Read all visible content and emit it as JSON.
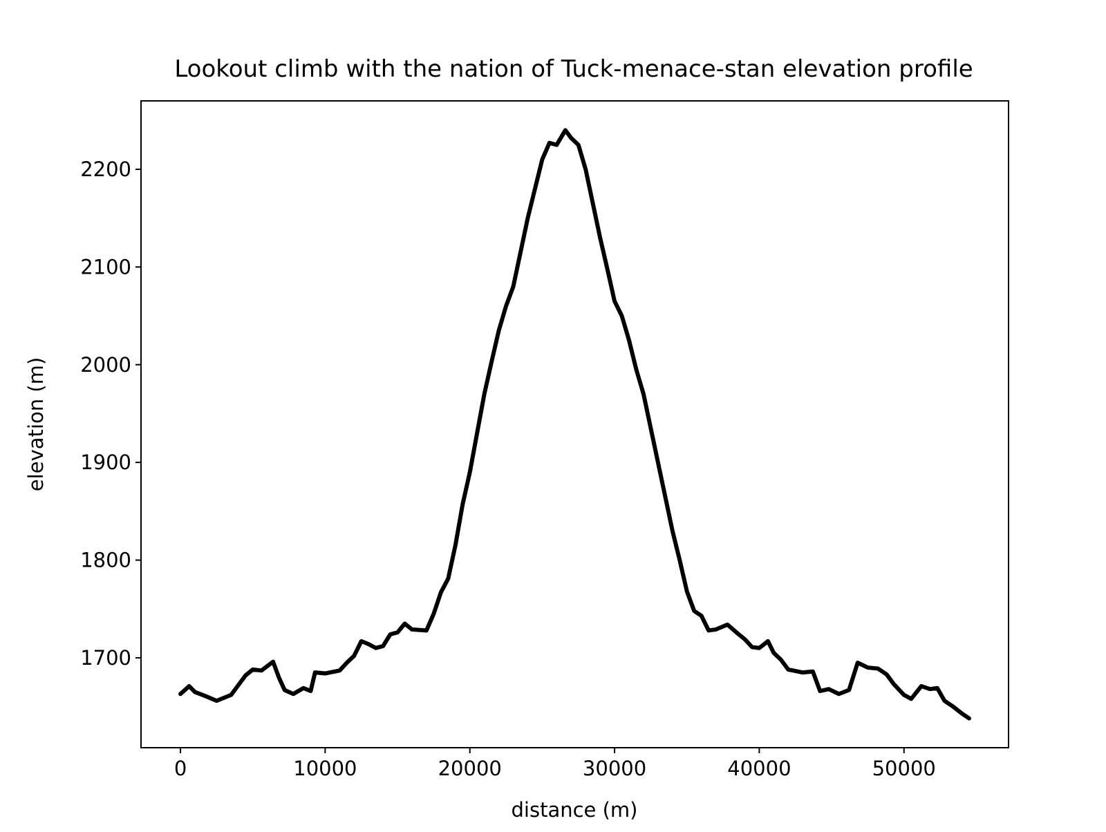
{
  "chart_data": {
    "type": "line",
    "title": "Lookout climb with the nation of Tuck-menace-stan elevation profile",
    "x_label": "distance (m)",
    "y_label": "elevation (m)",
    "x": [
      0,
      600,
      1000,
      1700,
      2500,
      3500,
      4000,
      4500,
      5000,
      5600,
      6400,
      6800,
      7200,
      7800,
      8500,
      9000,
      9300,
      10000,
      11000,
      11500,
      12000,
      12500,
      13000,
      13500,
      14000,
      14500,
      15000,
      15500,
      16000,
      17000,
      17500,
      18000,
      18500,
      19000,
      19500,
      20000,
      20500,
      21000,
      21500,
      22000,
      22500,
      23000,
      23500,
      24000,
      24500,
      25000,
      25500,
      26000,
      26600,
      27000,
      27500,
      28000,
      28500,
      29000,
      29500,
      30000,
      30500,
      31000,
      31500,
      32000,
      32500,
      33000,
      33500,
      34000,
      34500,
      35000,
      35500,
      36000,
      36500,
      37000,
      37800,
      38500,
      39000,
      39500,
      40000,
      40600,
      41000,
      41500,
      42000,
      43000,
      43700,
      44200,
      44800,
      45500,
      46200,
      46800,
      47500,
      48200,
      48800,
      49300,
      50000,
      50500,
      51200,
      51800,
      52300,
      52800,
      53400,
      54000,
      54500
    ],
    "series": [
      {
        "name": "elevation",
        "color": "#000000",
        "values": [
          1663,
          1671,
          1665,
          1661,
          1656,
          1662,
          1672,
          1682,
          1688,
          1687,
          1696,
          1680,
          1667,
          1663,
          1669,
          1666,
          1685,
          1684,
          1687,
          1695,
          1702,
          1717,
          1714,
          1710,
          1712,
          1724,
          1726,
          1735,
          1729,
          1728,
          1745,
          1767,
          1781,
          1815,
          1857,
          1890,
          1930,
          1970,
          2003,
          2035,
          2060,
          2080,
          2115,
          2150,
          2180,
          2210,
          2227,
          2225,
          2240,
          2232,
          2225,
          2200,
          2165,
          2130,
          2098,
          2065,
          2050,
          2025,
          1995,
          1970,
          1935,
          1900,
          1865,
          1830,
          1800,
          1768,
          1748,
          1743,
          1728,
          1729,
          1734,
          1725,
          1719,
          1711,
          1710,
          1717,
          1705,
          1698,
          1688,
          1685,
          1686,
          1666,
          1668,
          1663,
          1667,
          1695,
          1690,
          1689,
          1683,
          1673,
          1662,
          1658,
          1671,
          1668,
          1669,
          1656,
          1650,
          1643,
          1638
        ]
      }
    ],
    "xlim": [
      -2725,
      57225
    ],
    "ylim": [
      1608,
      2270
    ],
    "xticks": [
      0,
      10000,
      20000,
      30000,
      40000,
      50000
    ],
    "yticks": [
      1700,
      1800,
      1900,
      2000,
      2100,
      2200
    ],
    "grid": false
  }
}
